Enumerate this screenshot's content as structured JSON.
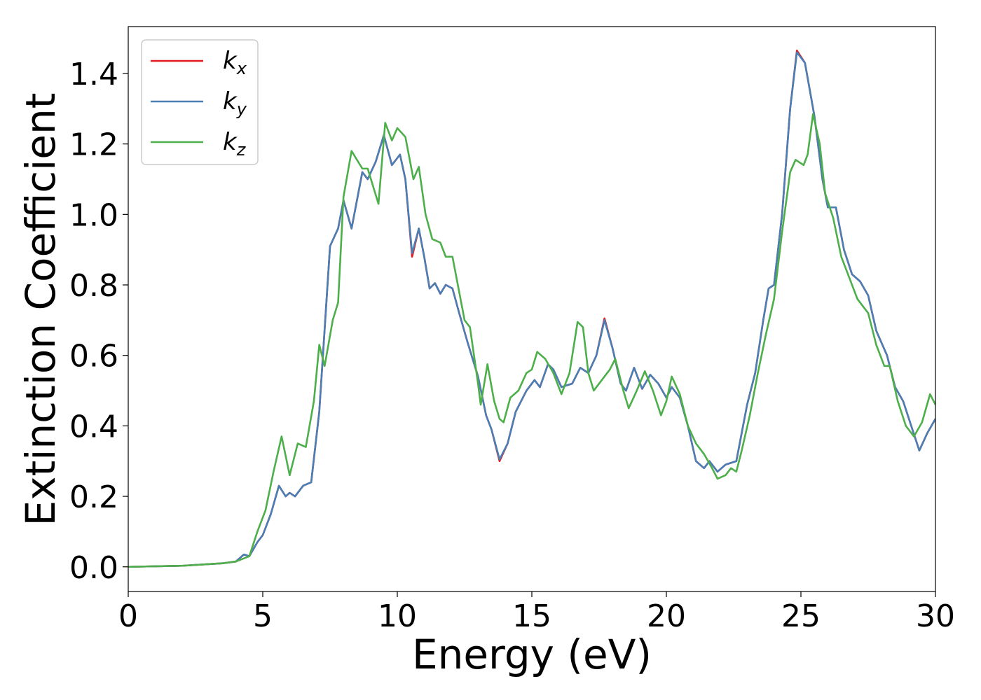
{
  "chart_data": {
    "type": "line",
    "xlabel": "Energy (eV)",
    "ylabel": "Extinction Coefficient",
    "xlim": [
      0,
      30
    ],
    "xticks": [
      0,
      5,
      10,
      15,
      20,
      25,
      30
    ],
    "ylim": [
      -0.07,
      1.533
    ],
    "yticks": [
      {
        "value": 0,
        "label": "0.0"
      },
      0.2,
      0.4,
      0.6,
      0.8,
      {
        "value": 1,
        "label": "1.0"
      },
      1.2,
      1.4
    ],
    "legend": "upper left",
    "series": [
      {
        "name": "kx",
        "color": "#e41a1c",
        "x": [
          0,
          2,
          3.5,
          4,
          4.3,
          4.5,
          4.8,
          5,
          5.3,
          5.6,
          5.85,
          6,
          6.2,
          6.5,
          6.8,
          7.1,
          7.5,
          7.8,
          8,
          8.3,
          8.7,
          8.9,
          9.2,
          9.5,
          9.8,
          10.1,
          10.3,
          10.55,
          10.8,
          11,
          11.2,
          11.4,
          11.6,
          11.8,
          12.05,
          12.3,
          12.6,
          13,
          13.3,
          13.5,
          13.8,
          14.1,
          14.4,
          14.8,
          15.1,
          15.3,
          15.6,
          15.8,
          16.1,
          16.5,
          16.8,
          17.1,
          17.4,
          17.7,
          18,
          18.3,
          18.5,
          18.8,
          19.1,
          19.4,
          19.7,
          20,
          20.2,
          20.5,
          20.8,
          21.1,
          21.4,
          21.6,
          21.9,
          22.2,
          22.6,
          23,
          23.3,
          23.6,
          23.8,
          24,
          24.3,
          24.6,
          24.85,
          25.15,
          25.5,
          25.8,
          26,
          26.3,
          26.6,
          26.9,
          27.2,
          27.5,
          27.8,
          28.2,
          28.5,
          28.8,
          29.1,
          29.4,
          29.7,
          30
        ],
        "values": [
          0,
          0.003,
          0.01,
          0.015,
          0.035,
          0.03,
          0.07,
          0.09,
          0.15,
          0.23,
          0.2,
          0.21,
          0.2,
          0.23,
          0.24,
          0.44,
          0.91,
          0.96,
          1.04,
          0.96,
          1.12,
          1.1,
          1.15,
          1.225,
          1.14,
          1.17,
          1.1,
          0.88,
          0.96,
          0.88,
          0.79,
          0.805,
          0.775,
          0.8,
          0.79,
          0.72,
          0.64,
          0.54,
          0.43,
          0.39,
          0.3,
          0.35,
          0.44,
          0.5,
          0.53,
          0.51,
          0.575,
          0.56,
          0.51,
          0.52,
          0.565,
          0.55,
          0.6,
          0.705,
          0.62,
          0.52,
          0.5,
          0.565,
          0.505,
          0.545,
          0.52,
          0.48,
          0.51,
          0.48,
          0.4,
          0.3,
          0.28,
          0.3,
          0.27,
          0.29,
          0.3,
          0.46,
          0.55,
          0.7,
          0.79,
          0.8,
          1.0,
          1.3,
          1.465,
          1.43,
          1.28,
          1.1,
          1.02,
          1.02,
          0.9,
          0.83,
          0.81,
          0.77,
          0.67,
          0.6,
          0.51,
          0.47,
          0.4,
          0.33,
          0.38,
          0.42
        ]
      },
      {
        "name": "ky",
        "color": "#4a7fb5",
        "x": [
          0,
          2,
          3.5,
          4,
          4.3,
          4.5,
          4.8,
          5,
          5.3,
          5.6,
          5.85,
          6,
          6.2,
          6.5,
          6.8,
          7.1,
          7.5,
          7.8,
          8,
          8.3,
          8.7,
          8.9,
          9.2,
          9.5,
          9.8,
          10.1,
          10.3,
          10.55,
          10.8,
          11,
          11.2,
          11.4,
          11.6,
          11.8,
          12.05,
          12.3,
          12.6,
          13,
          13.3,
          13.5,
          13.8,
          14.1,
          14.4,
          14.8,
          15.1,
          15.3,
          15.6,
          15.8,
          16.1,
          16.5,
          16.8,
          17.1,
          17.4,
          17.7,
          18,
          18.3,
          18.5,
          18.8,
          19.1,
          19.4,
          19.7,
          20,
          20.2,
          20.5,
          20.8,
          21.1,
          21.4,
          21.6,
          21.9,
          22.2,
          22.6,
          23,
          23.3,
          23.6,
          23.8,
          24,
          24.3,
          24.6,
          24.85,
          25.15,
          25.5,
          25.8,
          26,
          26.3,
          26.6,
          26.9,
          27.2,
          27.5,
          27.8,
          28.2,
          28.5,
          28.8,
          29.1,
          29.4,
          29.7,
          30
        ],
        "values": [
          0,
          0.003,
          0.01,
          0.015,
          0.035,
          0.03,
          0.07,
          0.09,
          0.15,
          0.23,
          0.2,
          0.21,
          0.2,
          0.23,
          0.24,
          0.44,
          0.91,
          0.96,
          1.04,
          0.96,
          1.12,
          1.1,
          1.15,
          1.225,
          1.14,
          1.17,
          1.1,
          0.89,
          0.96,
          0.88,
          0.79,
          0.805,
          0.775,
          0.8,
          0.79,
          0.72,
          0.64,
          0.54,
          0.43,
          0.39,
          0.305,
          0.35,
          0.44,
          0.5,
          0.53,
          0.51,
          0.575,
          0.56,
          0.51,
          0.52,
          0.565,
          0.55,
          0.6,
          0.7,
          0.62,
          0.52,
          0.5,
          0.565,
          0.505,
          0.545,
          0.52,
          0.48,
          0.51,
          0.48,
          0.4,
          0.3,
          0.28,
          0.3,
          0.27,
          0.29,
          0.3,
          0.46,
          0.55,
          0.7,
          0.79,
          0.8,
          1.0,
          1.3,
          1.46,
          1.43,
          1.28,
          1.1,
          1.02,
          1.02,
          0.9,
          0.83,
          0.81,
          0.77,
          0.67,
          0.6,
          0.51,
          0.47,
          0.4,
          0.33,
          0.38,
          0.42
        ]
      },
      {
        "name": "kz",
        "color": "#4daf4a",
        "x": [
          0,
          2,
          3.5,
          4,
          4.5,
          4.8,
          5.1,
          5.4,
          5.7,
          6,
          6.3,
          6.6,
          6.9,
          7.1,
          7.3,
          7.6,
          7.8,
          8,
          8.3,
          8.7,
          8.9,
          9.3,
          9.55,
          9.8,
          10,
          10.3,
          10.6,
          10.8,
          11.05,
          11.3,
          11.6,
          11.8,
          12.05,
          12.3,
          12.5,
          12.7,
          13,
          13.1,
          13.35,
          13.6,
          13.8,
          13.95,
          14.2,
          14.5,
          14.8,
          15,
          15.2,
          15.5,
          15.8,
          16.1,
          16.4,
          16.7,
          16.9,
          17.1,
          17.3,
          17.6,
          17.9,
          18.1,
          18.4,
          18.6,
          18.9,
          19.2,
          19.5,
          19.8,
          20,
          20.2,
          20.5,
          20.8,
          21.1,
          21.4,
          21.7,
          21.9,
          22.2,
          22.4,
          22.6,
          22.8,
          23.1,
          23.4,
          23.7,
          24,
          24.3,
          24.6,
          24.8,
          25.1,
          25.25,
          25.45,
          25.7,
          25.9,
          26.2,
          26.5,
          26.8,
          27.1,
          27.5,
          27.8,
          28.1,
          28.3,
          28.6,
          28.9,
          29.2,
          29.5,
          29.8,
          30
        ],
        "values": [
          0,
          0.003,
          0.01,
          0.015,
          0.03,
          0.1,
          0.16,
          0.27,
          0.37,
          0.26,
          0.35,
          0.34,
          0.47,
          0.63,
          0.57,
          0.7,
          0.75,
          1.05,
          1.18,
          1.13,
          1.13,
          1.03,
          1.26,
          1.21,
          1.245,
          1.22,
          1.1,
          1.135,
          1.0,
          0.93,
          0.92,
          0.88,
          0.88,
          0.78,
          0.7,
          0.68,
          0.52,
          0.46,
          0.575,
          0.47,
          0.42,
          0.41,
          0.48,
          0.5,
          0.55,
          0.56,
          0.61,
          0.59,
          0.55,
          0.49,
          0.55,
          0.695,
          0.68,
          0.55,
          0.5,
          0.53,
          0.56,
          0.59,
          0.5,
          0.45,
          0.5,
          0.555,
          0.5,
          0.43,
          0.47,
          0.54,
          0.49,
          0.4,
          0.35,
          0.32,
          0.28,
          0.25,
          0.26,
          0.28,
          0.27,
          0.33,
          0.43,
          0.55,
          0.66,
          0.76,
          0.95,
          1.12,
          1.155,
          1.14,
          1.17,
          1.285,
          1.2,
          1.06,
          0.99,
          0.88,
          0.82,
          0.76,
          0.72,
          0.63,
          0.57,
          0.57,
          0.47,
          0.4,
          0.37,
          0.41,
          0.49,
          0.46
        ]
      }
    ]
  }
}
